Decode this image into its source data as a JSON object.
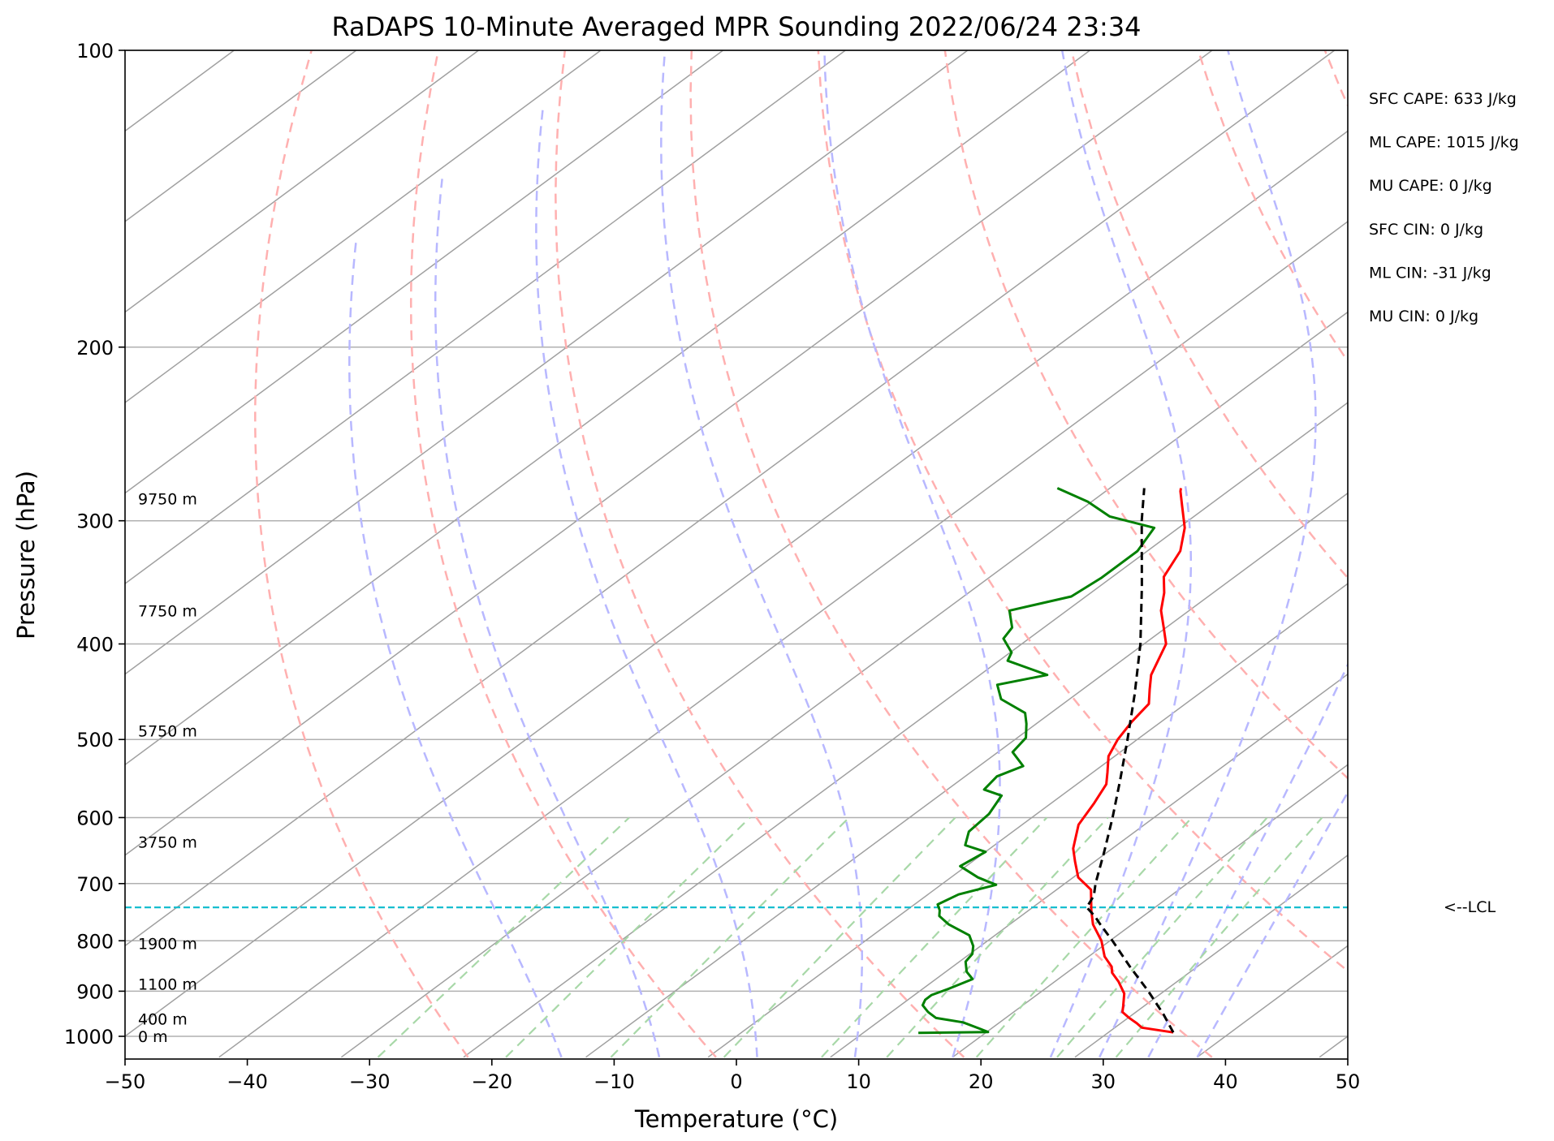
{
  "chart_data": {
    "type": "skew-t",
    "title": "RaDAPS 10-Minute Averaged MPR Sounding 2022/06/24 23:34",
    "xlabel": "Temperature (°C)",
    "ylabel": "Pressure (hPa)",
    "xlim": [
      -50,
      50
    ],
    "ylim": [
      1050,
      100
    ],
    "x_ticks": [
      -50,
      -40,
      -30,
      -20,
      -10,
      0,
      10,
      20,
      30,
      40,
      50
    ],
    "x_tick_labels": [
      "−50",
      "−40",
      "−30",
      "−20",
      "−10",
      "0",
      "10",
      "20",
      "30",
      "40",
      "50"
    ],
    "pressure_ticks": [
      1000,
      900,
      800,
      700,
      600,
      500,
      400,
      300,
      200,
      100
    ],
    "pressure_tick_labels": [
      "1000",
      "900",
      "800",
      "700",
      "600",
      "500",
      "400",
      "300",
      "200",
      "100"
    ],
    "height_labels": [
      {
        "label": "0 m",
        "pressure": 1000
      },
      {
        "label": "400 m",
        "pressure": 960
      },
      {
        "label": "1100 m",
        "pressure": 885
      },
      {
        "label": "1900 m",
        "pressure": 805
      },
      {
        "label": "3750 m",
        "pressure": 635
      },
      {
        "label": "5750 m",
        "pressure": 490
      },
      {
        "label": "7750 m",
        "pressure": 370
      },
      {
        "label": "9750 m",
        "pressure": 285
      }
    ],
    "indices": [
      "SFC CAPE: 633 J/kg",
      "ML CAPE: 1015 J/kg",
      "MU CAPE: 0 J/kg",
      "SFC CIN: 0 J/kg",
      "ML CIN: -31 J/kg",
      "MU CIN: 0 J/kg"
    ],
    "lcl": {
      "label": "<--LCL",
      "pressure": 740
    },
    "series": [
      {
        "key": "temperature",
        "color": "#ff0000",
        "points": [
          [
            991,
            35.3
          ],
          [
            980,
            32.2
          ],
          [
            970,
            31.3
          ],
          [
            957,
            30.0
          ],
          [
            945,
            28.9
          ],
          [
            932,
            28.3
          ],
          [
            905,
            27.0
          ],
          [
            880,
            25.2
          ],
          [
            862,
            23.7
          ],
          [
            850,
            23.0
          ],
          [
            830,
            21.3
          ],
          [
            800,
            19.3
          ],
          [
            770,
            16.8
          ],
          [
            745,
            15.1
          ],
          [
            710,
            12.8
          ],
          [
            690,
            10.4
          ],
          [
            665,
            8.4
          ],
          [
            645,
            6.8
          ],
          [
            610,
            4.6
          ],
          [
            580,
            3.5
          ],
          [
            555,
            2.4
          ],
          [
            540,
            1.2
          ],
          [
            520,
            -0.5
          ],
          [
            500,
            -1.6
          ],
          [
            480,
            -2.4
          ],
          [
            460,
            -3.0
          ],
          [
            445,
            -4.5
          ],
          [
            430,
            -6.0
          ],
          [
            400,
            -8.2
          ],
          [
            385,
            -10.2
          ],
          [
            370,
            -12.3
          ],
          [
            355,
            -14.0
          ],
          [
            342,
            -15.8
          ],
          [
            322,
            -17.3
          ],
          [
            305,
            -19.5
          ],
          [
            290,
            -22.1
          ],
          [
            280,
            -23.9
          ],
          [
            278,
            -24.2
          ]
        ]
      },
      {
        "key": "dewpoint",
        "color": "#008000",
        "points": [
          [
            992,
            14.5
          ],
          [
            990,
            20.1
          ],
          [
            982,
            19.0
          ],
          [
            968,
            17.0
          ],
          [
            958,
            14.3
          ],
          [
            945,
            13.0
          ],
          [
            930,
            11.8
          ],
          [
            918,
            11.4
          ],
          [
            908,
            11.4
          ],
          [
            895,
            12.1
          ],
          [
            875,
            13.0
          ],
          [
            860,
            11.7
          ],
          [
            840,
            10.5
          ],
          [
            825,
            10.2
          ],
          [
            810,
            9.4
          ],
          [
            790,
            7.9
          ],
          [
            770,
            5.0
          ],
          [
            755,
            3.3
          ],
          [
            745,
            2.7
          ],
          [
            735,
            1.9
          ],
          [
            718,
            2.5
          ],
          [
            702,
            4.5
          ],
          [
            690,
            2.2
          ],
          [
            672,
            -0.5
          ],
          [
            650,
            0.0
          ],
          [
            640,
            -2.4
          ],
          [
            620,
            -3.6
          ],
          [
            595,
            -3.9
          ],
          [
            570,
            -4.9
          ],
          [
            562,
            -7.0
          ],
          [
            545,
            -7.4
          ],
          [
            532,
            -6.4
          ],
          [
            515,
            -8.8
          ],
          [
            498,
            -9.3
          ],
          [
            482,
            -10.8
          ],
          [
            470,
            -12.1
          ],
          [
            455,
            -15.6
          ],
          [
            440,
            -17.5
          ],
          [
            430,
            -14.5
          ],
          [
            416,
            -19.3
          ],
          [
            408,
            -19.9
          ],
          [
            395,
            -22.1
          ],
          [
            385,
            -22.6
          ],
          [
            370,
            -24.7
          ],
          [
            358,
            -21.2
          ],
          [
            343,
            -20.8
          ],
          [
            322,
            -20.8
          ],
          [
            305,
            -22.0
          ],
          [
            297,
            -26.9
          ],
          [
            287,
            -30.3
          ],
          [
            278,
            -34.3
          ]
        ]
      },
      {
        "key": "parcel",
        "color": "#000000",
        "points": [
          [
            991,
            35.3
          ],
          [
            950,
            32.5
          ],
          [
            900,
            28.7
          ],
          [
            850,
            24.5
          ],
          [
            800,
            20.2
          ],
          [
            770,
            17.4
          ],
          [
            755,
            16.0
          ],
          [
            740,
            14.4
          ],
          [
            720,
            13.7
          ],
          [
            700,
            12.5
          ],
          [
            650,
            9.7
          ],
          [
            600,
            6.6
          ],
          [
            550,
            3.1
          ],
          [
            500,
            -0.8
          ],
          [
            450,
            -5.2
          ],
          [
            400,
            -10.3
          ],
          [
            350,
            -16.5
          ],
          [
            300,
            -23.8
          ],
          [
            278,
            -27.2
          ]
        ]
      }
    ],
    "background": {
      "isotherm_spacing": 10,
      "dry_adiabats_theta_K": [
        250,
        270,
        290,
        310,
        330,
        350,
        370,
        390,
        410,
        430,
        450
      ],
      "moist_adiabats_start_C": [
        -12,
        -4,
        4,
        12,
        20,
        28,
        32,
        36,
        40
      ],
      "mixing_ratios_gkg": [
        0.4,
        1,
        2,
        4,
        7,
        10,
        16,
        24,
        32
      ],
      "colors": {
        "grid": "#b0b0b0",
        "isotherm": "#a0a0a0",
        "dry_adiabat": "#ffb0b0",
        "moist_adiabat": "#b8b8ff",
        "mixing_ratio": "#a8d8a8",
        "lcl": "#17becf"
      }
    }
  }
}
